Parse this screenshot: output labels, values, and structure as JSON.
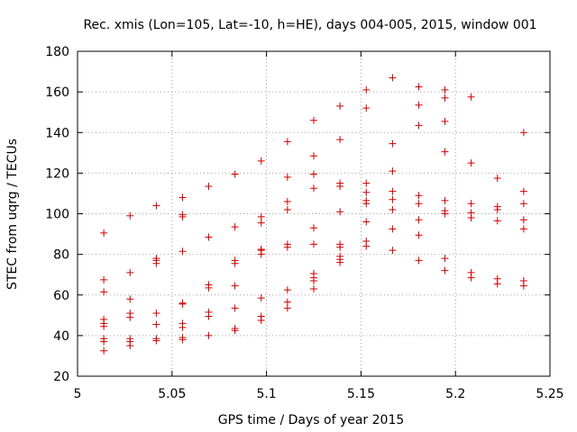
{
  "chart_data": {
    "type": "scatter",
    "title": "Rec. xmis (Lon=105, Lat=-10, h=HE), days 004-005, 2015, window 001",
    "xlabel": "GPS time / Days of year 2015",
    "ylabel": "STEC from uqrg / TECUs",
    "xlim": [
      5,
      5.25
    ],
    "ylim": [
      20,
      180
    ],
    "x_ticks": [
      5,
      5.05,
      5.1,
      5.15,
      5.2,
      5.25
    ],
    "x_tick_labels": [
      "5",
      "5.05",
      "5.1",
      "5.15",
      "5.2",
      "5.25"
    ],
    "y_ticks": [
      20,
      40,
      60,
      80,
      100,
      120,
      140,
      160,
      180
    ],
    "y_tick_labels": [
      "20",
      "40",
      "60",
      "80",
      "100",
      "120",
      "140",
      "160",
      "180"
    ],
    "grid": true,
    "marker": "+",
    "color": "#cc0000",
    "points": [
      [
        5.0139,
        90.5
      ],
      [
        5.0139,
        67.5
      ],
      [
        5.0139,
        61.5
      ],
      [
        5.0139,
        48
      ],
      [
        5.0139,
        46
      ],
      [
        5.0139,
        44.5
      ],
      [
        5.0139,
        38.5
      ],
      [
        5.0139,
        37
      ],
      [
        5.0139,
        32.5
      ],
      [
        5.0278,
        99
      ],
      [
        5.0278,
        71
      ],
      [
        5.0278,
        58
      ],
      [
        5.0278,
        51
      ],
      [
        5.0278,
        49
      ],
      [
        5.0278,
        38.5
      ],
      [
        5.0278,
        37
      ],
      [
        5.0278,
        35
      ],
      [
        5.0417,
        104
      ],
      [
        5.0417,
        78
      ],
      [
        5.0417,
        77
      ],
      [
        5.0417,
        75.5
      ],
      [
        5.0417,
        51
      ],
      [
        5.0417,
        45.5
      ],
      [
        5.0417,
        38.5
      ],
      [
        5.0417,
        37.5
      ],
      [
        5.0556,
        108
      ],
      [
        5.0556,
        99.5
      ],
      [
        5.0556,
        98.5
      ],
      [
        5.0556,
        81.5
      ],
      [
        5.0556,
        56
      ],
      [
        5.0556,
        55.5
      ],
      [
        5.0556,
        46
      ],
      [
        5.0556,
        44
      ],
      [
        5.0556,
        39
      ],
      [
        5.0556,
        38
      ],
      [
        5.0694,
        113.5
      ],
      [
        5.0694,
        88.5
      ],
      [
        5.0694,
        65
      ],
      [
        5.0694,
        63.5
      ],
      [
        5.0694,
        51.5
      ],
      [
        5.0694,
        49.5
      ],
      [
        5.0694,
        40
      ],
      [
        5.0833,
        119.5
      ],
      [
        5.0833,
        93.5
      ],
      [
        5.0833,
        77
      ],
      [
        5.0833,
        75.5
      ],
      [
        5.0833,
        64.5
      ],
      [
        5.0833,
        53.5
      ],
      [
        5.0833,
        43.5
      ],
      [
        5.0833,
        42.5
      ],
      [
        5.0972,
        126
      ],
      [
        5.0972,
        98.5
      ],
      [
        5.0972,
        95.5
      ],
      [
        5.0972,
        82.5
      ],
      [
        5.0972,
        82
      ],
      [
        5.0972,
        80
      ],
      [
        5.0972,
        58.5
      ],
      [
        5.0972,
        49.5
      ],
      [
        5.0972,
        47.5
      ],
      [
        5.1111,
        135.5
      ],
      [
        5.1111,
        118
      ],
      [
        5.1111,
        106
      ],
      [
        5.1111,
        102
      ],
      [
        5.1111,
        85
      ],
      [
        5.1111,
        83.5
      ],
      [
        5.1111,
        62.5
      ],
      [
        5.1111,
        56.5
      ],
      [
        5.1111,
        53.5
      ],
      [
        5.125,
        146
      ],
      [
        5.125,
        128.5
      ],
      [
        5.125,
        119.5
      ],
      [
        5.125,
        112.5
      ],
      [
        5.125,
        93
      ],
      [
        5.125,
        85
      ],
      [
        5.125,
        70.5
      ],
      [
        5.125,
        68.5
      ],
      [
        5.125,
        67
      ],
      [
        5.125,
        63
      ],
      [
        5.1389,
        153
      ],
      [
        5.1389,
        136.5
      ],
      [
        5.1389,
        115
      ],
      [
        5.1389,
        113.5
      ],
      [
        5.1389,
        101
      ],
      [
        5.1389,
        85
      ],
      [
        5.1389,
        83.5
      ],
      [
        5.1389,
        79
      ],
      [
        5.1389,
        77.5
      ],
      [
        5.1389,
        76
      ],
      [
        5.1528,
        161
      ],
      [
        5.1528,
        152
      ],
      [
        5.1528,
        115
      ],
      [
        5.1528,
        110.5
      ],
      [
        5.1528,
        106.5
      ],
      [
        5.1528,
        105
      ],
      [
        5.1528,
        96
      ],
      [
        5.1528,
        86.5
      ],
      [
        5.1528,
        84
      ],
      [
        5.1667,
        167
      ],
      [
        5.1667,
        134.5
      ],
      [
        5.1667,
        121
      ],
      [
        5.1667,
        111
      ],
      [
        5.1667,
        107
      ],
      [
        5.1667,
        102
      ],
      [
        5.1667,
        92.5
      ],
      [
        5.1667,
        82
      ],
      [
        5.1806,
        162.5
      ],
      [
        5.1806,
        153.5
      ],
      [
        5.1806,
        143.5
      ],
      [
        5.1806,
        109
      ],
      [
        5.1806,
        105
      ],
      [
        5.1806,
        97
      ],
      [
        5.1806,
        89.5
      ],
      [
        5.1806,
        77
      ],
      [
        5.1944,
        161
      ],
      [
        5.1944,
        157
      ],
      [
        5.1944,
        145.5
      ],
      [
        5.1944,
        130.5
      ],
      [
        5.1944,
        106.5
      ],
      [
        5.1944,
        101.5
      ],
      [
        5.1944,
        100
      ],
      [
        5.1944,
        78
      ],
      [
        5.1944,
        72
      ],
      [
        5.2083,
        157.5
      ],
      [
        5.2083,
        125
      ],
      [
        5.2083,
        105
      ],
      [
        5.2083,
        100.5
      ],
      [
        5.2083,
        98
      ],
      [
        5.2083,
        71
      ],
      [
        5.2083,
        68.5
      ],
      [
        5.2222,
        117.5
      ],
      [
        5.2222,
        103.5
      ],
      [
        5.2222,
        102
      ],
      [
        5.2222,
        96.5
      ],
      [
        5.2222,
        68
      ],
      [
        5.2222,
        65.5
      ],
      [
        5.2361,
        140
      ],
      [
        5.2361,
        111
      ],
      [
        5.2361,
        105
      ],
      [
        5.2361,
        97
      ],
      [
        5.2361,
        92.5
      ],
      [
        5.2361,
        67
      ],
      [
        5.2361,
        64.5
      ]
    ]
  }
}
